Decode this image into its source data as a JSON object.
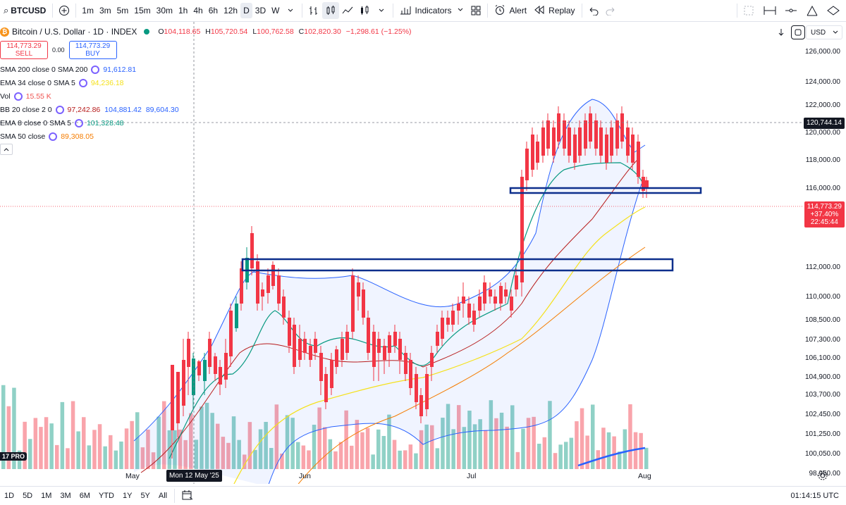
{
  "toolbar": {
    "symbol": "BTCUSD",
    "intervals": [
      "1m",
      "3m",
      "5m",
      "15m",
      "30m",
      "1h",
      "4h",
      "6h",
      "12h",
      "D",
      "3D",
      "W"
    ],
    "active_interval": "D",
    "indicators_label": "Indicators",
    "alert_label": "Alert",
    "replay_label": "Replay"
  },
  "legend": {
    "title": "Bitcoin / U.S. Dollar · 1D · INDEX",
    "ohlc": {
      "o_label": "O",
      "o": "104,118.65",
      "h_label": "H",
      "h": "105,720.54",
      "l_label": "L",
      "l": "100,762.58",
      "c_label": "C",
      "c": "102,820.30",
      "change": "−1,298.61 (−1.25%)"
    },
    "sell_price": "114,773.29",
    "sell_label": "SELL",
    "spread": "0.00",
    "buy_price": "114,773.29",
    "buy_label": "BUY",
    "indicators": [
      {
        "name": "SMA 200 close 0 SMA 200",
        "values": [
          "91,612.81"
        ],
        "colors": [
          "#2962ff"
        ]
      },
      {
        "name": "EMA 34 close 0 SMA 5",
        "values": [
          "94,236.18"
        ],
        "colors": [
          "#f5e11b"
        ]
      },
      {
        "name": "Vol",
        "values": [
          "15.55 K"
        ],
        "colors": [
          "#ef5350"
        ]
      },
      {
        "name": "BB 20 close 2 0",
        "values": [
          "97,242.86",
          "104,881.42",
          "89,604.30"
        ],
        "colors": [
          "#b71c1c",
          "#2962ff",
          "#2962ff"
        ]
      },
      {
        "name": "EMA 8 close 0 SMA 5",
        "values": [
          "101,328.48"
        ],
        "colors": [
          "#089981"
        ]
      },
      {
        "name": "SMA 50 close",
        "values": [
          "89,308.05"
        ],
        "colors": [
          "#f57c00"
        ]
      }
    ]
  },
  "price_scale": {
    "currency": "USD",
    "labels": [
      "126,000.00",
      "124,000.00",
      "122,000.00",
      "120,000.00",
      "118,000.00",
      "116,000.00",
      "112,000.00",
      "110,000.00",
      "108,500.00",
      "107,300.00",
      "106,100.00",
      "104,900.00",
      "103,700.00",
      "102,450.00",
      "101,250.00",
      "100,050.00",
      "98,950.00"
    ],
    "crosshair_price": "120,744.14",
    "last_price": "114,773.29",
    "last_change": "+37.40%",
    "countdown": "22:45:44"
  },
  "time_axis": {
    "labels": [
      "May",
      "Jun",
      "Jul",
      "Aug"
    ],
    "crosshair_date": "Mon 12 May '25"
  },
  "bottom_bar": {
    "ranges": [
      "1D",
      "5D",
      "1M",
      "3M",
      "6M",
      "YTD",
      "1Y",
      "5Y",
      "All"
    ],
    "clock": "01:14:15 UTC"
  },
  "watermark": "17 PRO",
  "colors": {
    "up": "#089981",
    "down": "#f23645",
    "accent": "#2962ff",
    "zone": "#0d2f8c"
  }
}
